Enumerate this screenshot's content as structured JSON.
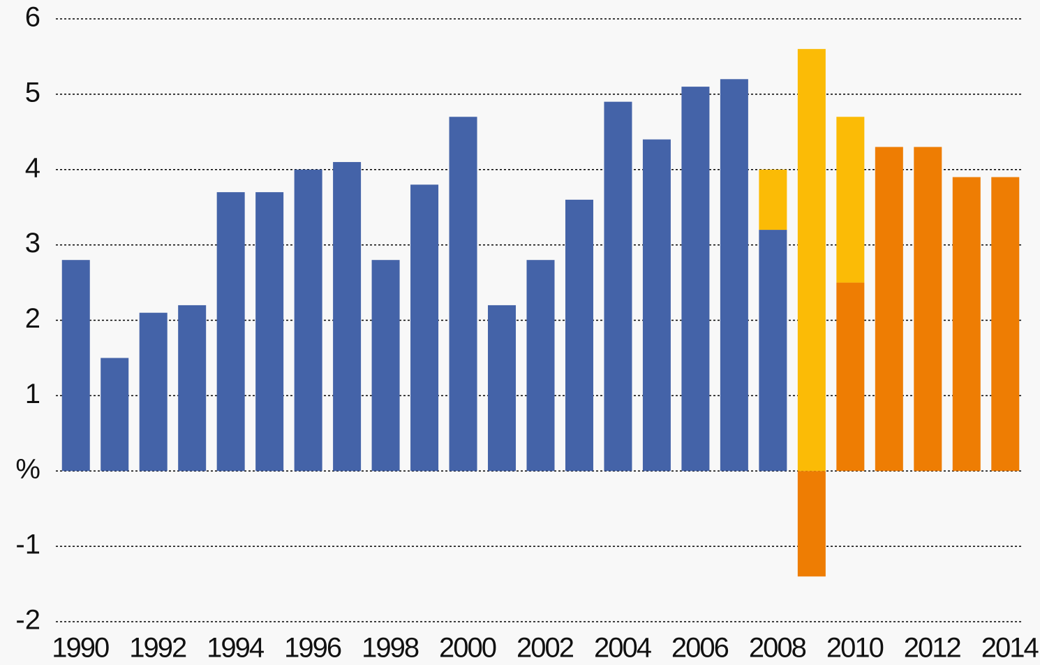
{
  "chart_data": {
    "type": "bar",
    "stacked": true,
    "categories": [
      "1990",
      null,
      "1992",
      null,
      "1994",
      null,
      "1996",
      null,
      "1998",
      null,
      "2000",
      null,
      "2002",
      null,
      "2004",
      null,
      "2006",
      null,
      "2008",
      null,
      "2010",
      null,
      "2012",
      null,
      "2014"
    ],
    "series": [
      {
        "color": "#4463a8",
        "values": [
          2.8,
          1.5,
          2.1,
          2.2,
          3.7,
          3.7,
          4.0,
          4.1,
          2.8,
          3.8,
          4.7,
          2.2,
          2.8,
          3.6,
          4.9,
          4.4,
          5.1,
          5.2,
          3.2,
          null,
          null,
          null,
          null,
          null,
          null
        ]
      },
      {
        "color": "#ee7d03",
        "values": [
          null,
          null,
          null,
          null,
          null,
          null,
          null,
          null,
          null,
          null,
          null,
          null,
          null,
          null,
          null,
          null,
          null,
          null,
          null,
          -1.4,
          2.5,
          4.3,
          4.3,
          3.9,
          3.9
        ]
      },
      {
        "color": "#fbbb06",
        "values": [
          null,
          null,
          null,
          null,
          null,
          null,
          null,
          null,
          null,
          null,
          null,
          null,
          null,
          null,
          null,
          null,
          null,
          null,
          0.8,
          5.6,
          2.2,
          null,
          null,
          null,
          null
        ]
      }
    ],
    "ylim": [
      -2,
      6
    ],
    "yticks": [
      -2,
      -1,
      {
        "value": 0,
        "label": "%"
      },
      1,
      2,
      3,
      4,
      5,
      6
    ],
    "grid": true
  }
}
